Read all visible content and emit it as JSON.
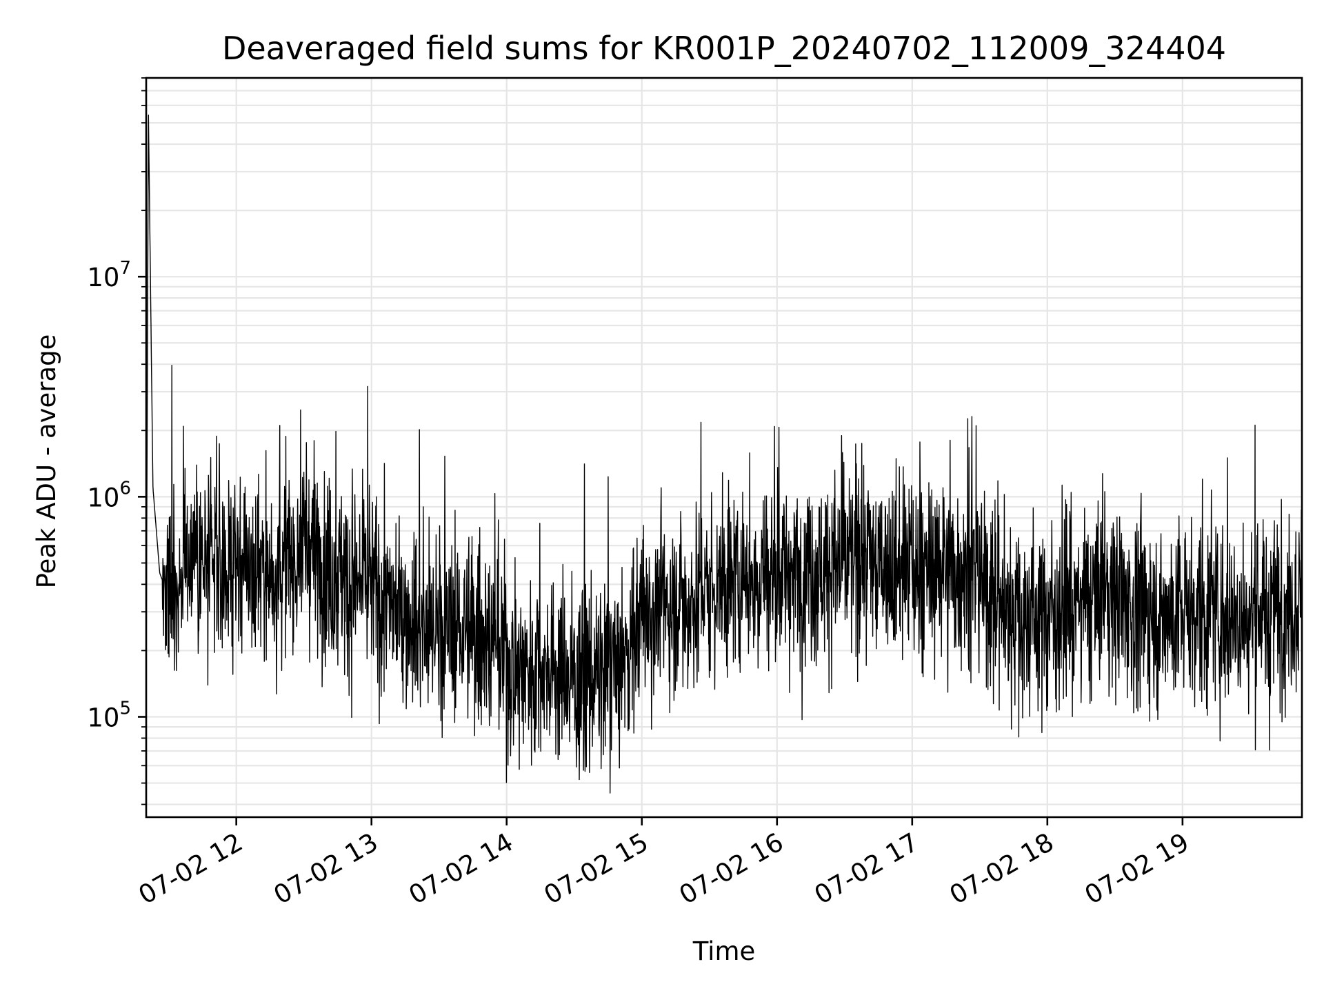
{
  "chart_data": {
    "type": "line",
    "title": "Deaveraged field sums for KR001P_20240702_112009_324404",
    "xlabel": "Time",
    "ylabel": "Peak ADU - average",
    "yscale": "log",
    "ylim": [
      35000,
      80000000
    ],
    "xlim": [
      "07-02 11:20",
      "07-02 19:53"
    ],
    "x_ticks": [
      "07-02 12",
      "07-02 13",
      "07-02 14",
      "07-02 15",
      "07-02 16",
      "07-02 17",
      "07-02 18",
      "07-02 19"
    ],
    "y_ticks": [
      {
        "label_base": "10",
        "label_exp": "5",
        "value": 100000
      },
      {
        "label_base": "10",
        "label_exp": "6",
        "value": 1000000
      },
      {
        "label_base": "10",
        "label_exp": "7",
        "value": 10000000
      }
    ],
    "grid": true,
    "line_color": "#000000",
    "series": [
      {
        "x": [
          "07-02 11:20",
          "07-02 11:21",
          "07-02 11:23",
          "07-02 11:26",
          "07-02 11:30",
          "07-02 11:35",
          "07-02 11:40",
          "07-02 11:45",
          "07-02 11:50",
          "07-02 12:00",
          "07-02 12:10",
          "07-02 12:20",
          "07-02 12:30",
          "07-02 12:40",
          "07-02 12:50",
          "07-02 13:00",
          "07-02 13:10",
          "07-02 13:20",
          "07-02 13:30",
          "07-02 13:40",
          "07-02 13:50",
          "07-02 14:00",
          "07-02 14:10",
          "07-02 14:20",
          "07-02 14:30",
          "07-02 14:40",
          "07-02 14:50",
          "07-02 15:00",
          "07-02 15:10",
          "07-02 15:20",
          "07-02 15:30",
          "07-02 15:40",
          "07-02 15:50",
          "07-02 16:00",
          "07-02 16:10",
          "07-02 16:20",
          "07-02 16:30",
          "07-02 16:40",
          "07-02 16:50",
          "07-02 17:00",
          "07-02 17:10",
          "07-02 17:20",
          "07-02 17:30",
          "07-02 17:40",
          "07-02 17:50",
          "07-02 18:00",
          "07-02 18:10",
          "07-02 18:20",
          "07-02 18:30",
          "07-02 18:40",
          "07-02 18:50",
          "07-02 19:00",
          "07-02 19:10",
          "07-02 19:20",
          "07-02 19:30",
          "07-02 19:40",
          "07-02 19:53"
        ],
        "trend": [
          150000,
          55000000,
          1100000,
          450000,
          350000,
          450000,
          600000,
          500000,
          450000,
          500000,
          450000,
          480000,
          600000,
          500000,
          400000,
          380000,
          300000,
          280000,
          260000,
          250000,
          230000,
          180000,
          170000,
          175000,
          150000,
          150000,
          160000,
          300000,
          320000,
          330000,
          380000,
          420000,
          450000,
          450000,
          460000,
          480000,
          500000,
          520000,
          480000,
          450000,
          450000,
          470000,
          420000,
          300000,
          280000,
          300000,
          320000,
          340000,
          360000,
          300000,
          280000,
          300000,
          300000,
          280000,
          290000,
          300000,
          350000
        ]
      }
    ]
  }
}
